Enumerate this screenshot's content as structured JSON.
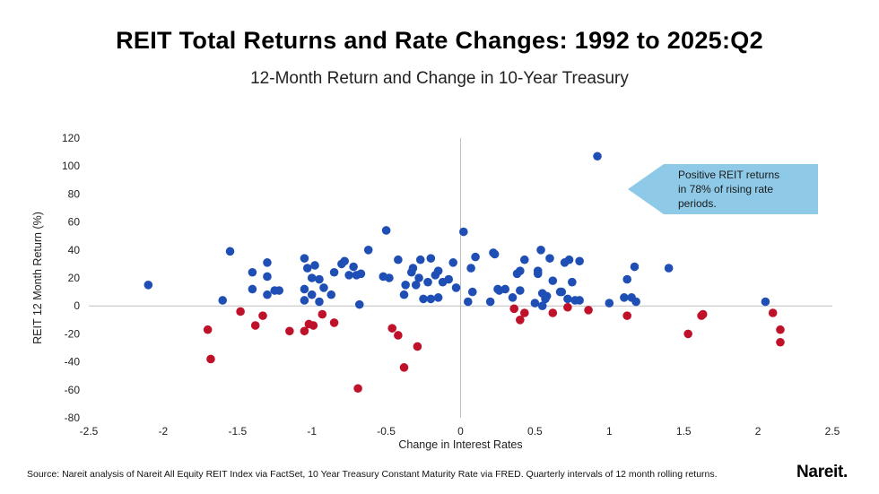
{
  "chart_data": {
    "type": "scatter",
    "title": "REIT Total Returns and Rate Changes: 1992 to 2025:Q2",
    "subtitle": "12-Month Return and Change in 10-Year Treasury",
    "xlabel": "Change in Interest Rates",
    "ylabel": "REIT 12 Month Return (%)",
    "xlim": [
      -2.5,
      2.5
    ],
    "ylim": [
      -80,
      120
    ],
    "xticks": [
      -2.5,
      -2,
      -1.5,
      -1,
      -0.5,
      0,
      0.5,
      1,
      1.5,
      2,
      2.5
    ],
    "yticks": [
      -80,
      -60,
      -40,
      -20,
      0,
      20,
      40,
      60,
      80,
      100,
      120
    ],
    "xtick_labels": [
      "-2.5",
      "-2",
      "-1.5",
      "-1",
      "-0.5",
      "0",
      "0.5",
      "1",
      "1.5",
      "2",
      "2.5"
    ],
    "ytick_labels": [
      "-80",
      "-60",
      "-40",
      "-20",
      "0",
      "20",
      "40",
      "60",
      "80",
      "100",
      "120"
    ],
    "grid": false,
    "colors": {
      "positive": "#1f4fb5",
      "negative": "#c0112a",
      "callout": "#8ecae8",
      "axis": "#bfbfbf"
    },
    "series": [
      {
        "points": [
          [
            -2.1,
            15
          ],
          [
            -1.6,
            4
          ],
          [
            -1.55,
            39
          ],
          [
            -1.4,
            24
          ],
          [
            -1.4,
            12
          ],
          [
            -1.3,
            31
          ],
          [
            -1.3,
            21
          ],
          [
            -1.3,
            8
          ],
          [
            -1.25,
            11
          ],
          [
            -1.22,
            11
          ],
          [
            -1.05,
            34
          ],
          [
            -1.05,
            12
          ],
          [
            -1.05,
            4
          ],
          [
            -1.03,
            27
          ],
          [
            -1.0,
            20
          ],
          [
            -1.0,
            8
          ],
          [
            -0.98,
            29
          ],
          [
            -0.95,
            19
          ],
          [
            -0.95,
            3
          ],
          [
            -0.92,
            13
          ],
          [
            -0.87,
            8
          ],
          [
            -0.85,
            24
          ],
          [
            -0.8,
            30
          ],
          [
            -0.78,
            32
          ],
          [
            -0.75,
            22
          ],
          [
            -0.72,
            28
          ],
          [
            -0.7,
            22
          ],
          [
            -0.68,
            1
          ],
          [
            -0.67,
            23
          ],
          [
            -0.62,
            40
          ],
          [
            -0.52,
            21
          ],
          [
            -0.5,
            54
          ],
          [
            -0.48,
            20
          ],
          [
            -0.42,
            33
          ],
          [
            -0.38,
            8
          ],
          [
            -0.37,
            15
          ],
          [
            -0.33,
            24
          ],
          [
            -0.32,
            27
          ],
          [
            -0.3,
            15
          ],
          [
            -0.28,
            20
          ],
          [
            -0.27,
            33
          ],
          [
            -0.25,
            5
          ],
          [
            -0.22,
            17
          ],
          [
            -0.2,
            34
          ],
          [
            -0.2,
            5
          ],
          [
            -0.17,
            22
          ],
          [
            -0.15,
            25
          ],
          [
            -0.15,
            6
          ],
          [
            -0.12,
            17
          ],
          [
            -0.08,
            19
          ],
          [
            -0.05,
            31
          ],
          [
            -0.03,
            13
          ],
          [
            0.02,
            53
          ],
          [
            0.05,
            3
          ],
          [
            0.07,
            27
          ],
          [
            0.08,
            10
          ],
          [
            0.1,
            35
          ],
          [
            0.2,
            3
          ],
          [
            0.22,
            38
          ],
          [
            0.23,
            37
          ],
          [
            0.25,
            12
          ],
          [
            0.26,
            11
          ],
          [
            0.3,
            12
          ],
          [
            0.35,
            6
          ],
          [
            0.38,
            23
          ],
          [
            0.4,
            25
          ],
          [
            0.4,
            11
          ],
          [
            0.43,
            33
          ],
          [
            0.5,
            2
          ],
          [
            0.52,
            25
          ],
          [
            0.52,
            23
          ],
          [
            0.54,
            40
          ],
          [
            0.55,
            0
          ],
          [
            0.55,
            9
          ],
          [
            0.57,
            5
          ],
          [
            0.58,
            7
          ],
          [
            0.6,
            34
          ],
          [
            0.62,
            18
          ],
          [
            0.67,
            10
          ],
          [
            0.68,
            10
          ],
          [
            0.7,
            31
          ],
          [
            0.72,
            5
          ],
          [
            0.73,
            33
          ],
          [
            0.75,
            17
          ],
          [
            0.77,
            4
          ],
          [
            0.8,
            32
          ],
          [
            0.8,
            4
          ],
          [
            0.92,
            107
          ],
          [
            1.0,
            2
          ],
          [
            1.1,
            6
          ],
          [
            1.12,
            19
          ],
          [
            1.15,
            6
          ],
          [
            1.17,
            28
          ],
          [
            1.18,
            3
          ],
          [
            1.4,
            27
          ],
          [
            2.05,
            3
          ]
        ],
        "color": "#1f4fb5"
      },
      {
        "points": [
          [
            -1.7,
            -17
          ],
          [
            -1.68,
            -38
          ],
          [
            -1.48,
            -4
          ],
          [
            -1.38,
            -14
          ],
          [
            -1.33,
            -7
          ],
          [
            -1.15,
            -18
          ],
          [
            -1.05,
            -18
          ],
          [
            -1.02,
            -13
          ],
          [
            -0.99,
            -14
          ],
          [
            -0.93,
            -6
          ],
          [
            -0.85,
            -12
          ],
          [
            -0.69,
            -59
          ],
          [
            -0.46,
            -16
          ],
          [
            -0.42,
            -21
          ],
          [
            -0.38,
            -44
          ],
          [
            -0.29,
            -29
          ],
          [
            0.36,
            -2
          ],
          [
            0.4,
            -10
          ],
          [
            0.43,
            -5
          ],
          [
            0.62,
            -5
          ],
          [
            0.72,
            -1
          ],
          [
            0.86,
            -3
          ],
          [
            1.12,
            -7
          ],
          [
            1.53,
            -20
          ],
          [
            1.62,
            -7
          ],
          [
            1.63,
            -6
          ],
          [
            2.1,
            -5
          ],
          [
            2.15,
            -17
          ],
          [
            2.15,
            -26
          ]
        ],
        "color": "#c0112a"
      }
    ],
    "annotation": {
      "lines": [
        "Positive REIT returns",
        "in 78% of rising rate",
        "periods."
      ]
    }
  },
  "footer": {
    "source": "Source: Nareit analysis of Nareit All Equity REIT Index via FactSet, 10 Year Treasury Constant Maturity Rate via FRED. Quarterly intervals of 12 month rolling returns.",
    "logo": "Nareit."
  }
}
